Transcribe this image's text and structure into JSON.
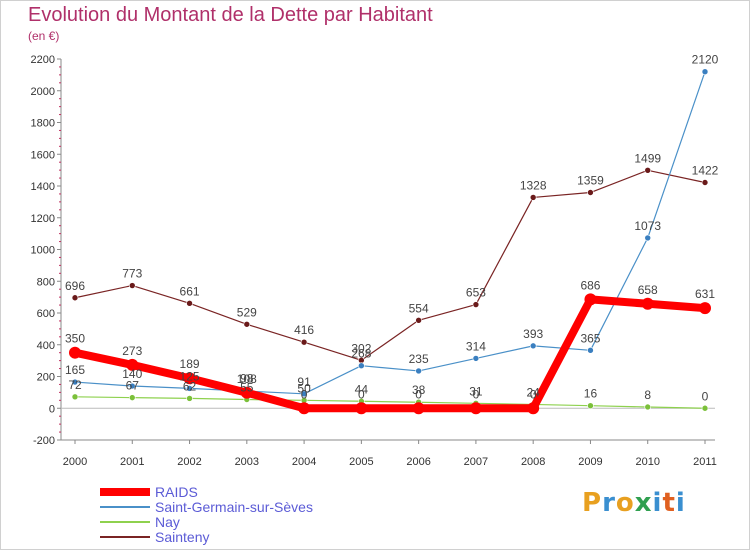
{
  "title": "Evolution du Montant de la Dette par Habitant",
  "unit_label": "(en €)",
  "logo": {
    "letters": [
      "P",
      "r",
      "o",
      "x",
      "i",
      "t",
      "i"
    ],
    "colors": [
      "#e8a020",
      "#3a8fd0",
      "#e8a020",
      "#30a050",
      "#3a8fd0",
      "#e06020",
      "#3a8fd0"
    ]
  },
  "chart_data": {
    "type": "line",
    "x": [
      "2000",
      "2001",
      "2002",
      "2003",
      "2004",
      "2005",
      "2006",
      "2007",
      "2008",
      "2009",
      "2010",
      "2011"
    ],
    "ylim": [
      -200,
      2200
    ],
    "yticks": [
      "-200",
      "0",
      "200",
      "400",
      "600",
      "800",
      "1000",
      "1200",
      "1400",
      "1600",
      "1800",
      "2000",
      "2200"
    ],
    "grid": false,
    "legend_position": "bottom-left",
    "series": [
      {
        "name": "RAIDS",
        "color": "#ff0000",
        "values": [
          350,
          273,
          189,
          98,
          0,
          0,
          0,
          0,
          0,
          686,
          658,
          631
        ],
        "labels": [
          "350",
          "273",
          "189",
          "98",
          "0",
          "0",
          "0",
          "0",
          "0",
          "686",
          "658",
          "631"
        ]
      },
      {
        "name": "Saint-Germain-sur-Sèves",
        "color": "#4a90c8",
        "values": [
          165,
          140,
          125,
          108,
          91,
          268,
          235,
          314,
          393,
          365,
          1073,
          2120
        ],
        "labels": [
          "165",
          "140",
          "125",
          "108",
          "91",
          "268",
          "235",
          "314",
          "393",
          "365",
          "1073",
          "2120"
        ]
      },
      {
        "name": "Nay",
        "color": "#8ed14e",
        "values": [
          72,
          67,
          62,
          55,
          50,
          44,
          38,
          31,
          24,
          16,
          8,
          0
        ],
        "labels": [
          "72",
          "67",
          "62",
          "55",
          "50",
          "44",
          "38",
          "31",
          "24",
          "16",
          "8",
          "0"
        ]
      },
      {
        "name": "Sainteny",
        "color": "#7a2424",
        "values": [
          696,
          773,
          661,
          529,
          416,
          302,
          554,
          653,
          1328,
          1359,
          1499,
          1422
        ],
        "labels": [
          "696",
          "773",
          "661",
          "529",
          "416",
          "302",
          "554",
          "653",
          "1328",
          "1359",
          "1499",
          "1422"
        ]
      }
    ]
  }
}
